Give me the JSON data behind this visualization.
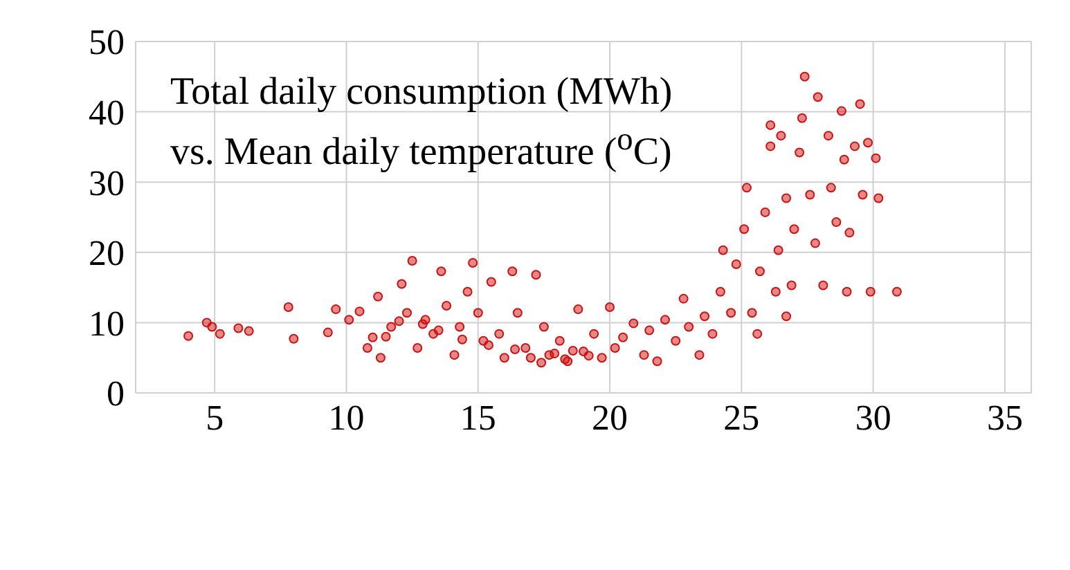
{
  "chart_data": {
    "type": "scatter",
    "title": "Total daily consumption (MWh) vs. Mean daily temperature ($^{o}$C)",
    "xlim": [
      2,
      36
    ],
    "xticks": [
      5,
      10,
      15,
      20,
      25,
      30,
      35
    ],
    "ylim": [
      0,
      50
    ],
    "yticks": [
      0,
      10,
      20,
      30,
      40,
      50
    ],
    "grid": true,
    "marker": "circle",
    "series": [
      {
        "color": "#cc1111",
        "x": [
          4.0,
          4.7,
          4.9,
          5.2,
          5.9,
          6.3,
          7.8,
          8.0,
          9.3,
          9.6,
          10.1,
          10.5,
          10.8,
          11.0,
          11.2,
          11.3,
          11.7,
          12.1,
          12.3,
          12.5,
          12.7,
          13.0,
          13.3,
          13.6,
          13.8,
          14.1,
          14.3,
          14.6,
          14.8,
          15.0,
          15.2,
          15.5,
          15.8,
          16.0,
          16.3,
          16.5,
          16.8,
          17.2,
          17.5,
          17.7,
          18.1,
          18.4,
          18.8,
          19.0,
          19.4,
          19.7,
          20.0,
          20.2,
          20.5,
          20.9,
          21.3,
          21.5,
          21.8,
          22.1,
          22.5,
          22.8,
          23.0,
          23.4,
          23.6,
          23.9,
          24.2,
          24.3,
          24.6,
          24.8,
          25.1,
          25.2,
          25.4,
          25.6,
          25.7,
          25.9,
          26.1,
          26.1,
          26.3,
          26.4,
          26.5,
          26.7,
          26.7,
          26.9,
          27.0,
          27.2,
          27.3,
          27.4,
          27.6,
          27.8,
          27.9,
          28.1,
          28.3,
          28.4,
          28.6,
          28.8,
          28.9,
          29.0,
          29.1,
          29.3,
          29.5,
          29.6,
          29.8,
          29.9,
          30.1,
          30.2,
          30.9,
          17.0,
          17.4,
          17.9,
          18.3,
          18.6,
          19.2,
          16.4,
          15.4,
          14.4,
          13.5,
          12.9,
          12.0,
          11.5
        ],
        "values": [
          8.1,
          10.0,
          9.4,
          8.4,
          9.2,
          8.8,
          12.2,
          7.7,
          8.6,
          11.9,
          10.4,
          11.6,
          6.4,
          7.9,
          13.7,
          5.0,
          9.4,
          15.5,
          11.4,
          18.8,
          6.4,
          10.4,
          8.4,
          17.3,
          12.4,
          5.4,
          9.4,
          14.4,
          18.5,
          11.4,
          7.4,
          15.8,
          8.4,
          5.0,
          17.3,
          11.4,
          6.4,
          16.8,
          9.4,
          5.4,
          7.4,
          4.5,
          11.9,
          5.9,
          8.4,
          5.0,
          12.2,
          6.4,
          7.9,
          9.9,
          5.4,
          8.9,
          4.5,
          10.4,
          7.4,
          13.4,
          9.4,
          5.4,
          10.9,
          8.4,
          14.4,
          20.3,
          11.4,
          18.3,
          23.3,
          29.2,
          11.4,
          8.4,
          17.3,
          25.7,
          38.1,
          35.1,
          14.4,
          20.3,
          36.6,
          27.7,
          10.9,
          15.3,
          23.3,
          34.2,
          39.1,
          45.0,
          28.2,
          21.3,
          42.1,
          15.3,
          36.6,
          29.2,
          24.3,
          40.1,
          33.2,
          14.4,
          22.8,
          35.1,
          41.1,
          28.2,
          35.6,
          14.4,
          33.4,
          27.7,
          14.4,
          5.0,
          4.3,
          5.6,
          4.8,
          6.0,
          5.3,
          6.2,
          6.8,
          7.6,
          8.9,
          9.8,
          10.2,
          8.0
        ]
      }
    ]
  }
}
